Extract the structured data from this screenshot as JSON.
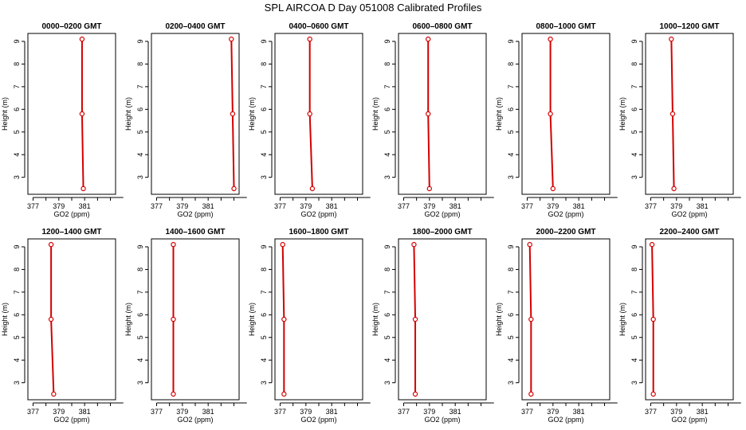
{
  "title": "SPL AIRCOA D  Day 051008  Calibrated Profiles",
  "chart_data": {
    "type": "line",
    "xlabel": "GO2 (ppm)",
    "ylabel": "Height (m)",
    "xlim": [
      376.6,
      383.4
    ],
    "ylim": [
      2.25,
      9.35
    ],
    "xticks": [
      377,
      379,
      381
    ],
    "yticks": [
      3,
      4,
      5,
      6,
      7,
      8,
      9
    ],
    "line_color": "#d40000",
    "grid": false,
    "panels": [
      {
        "title": "0000–0200 GMT",
        "x": [
          380.8,
          380.8,
          380.9
        ],
        "y": [
          9.1,
          5.8,
          2.5
        ]
      },
      {
        "title": "0200–0400 GMT",
        "x": [
          382.8,
          382.9,
          383.0
        ],
        "y": [
          9.1,
          5.8,
          2.5
        ]
      },
      {
        "title": "0400–0600 GMT",
        "x": [
          379.3,
          379.3,
          379.5
        ],
        "y": [
          9.1,
          5.8,
          2.5
        ]
      },
      {
        "title": "0600–0800 GMT",
        "x": [
          378.9,
          378.9,
          379.0
        ],
        "y": [
          9.1,
          5.8,
          2.5
        ]
      },
      {
        "title": "0800–1000 GMT",
        "x": [
          378.8,
          378.8,
          379.0
        ],
        "y": [
          9.1,
          5.8,
          2.5
        ]
      },
      {
        "title": "1000–1200 GMT",
        "x": [
          378.6,
          378.7,
          378.8
        ],
        "y": [
          9.1,
          5.8,
          2.5
        ]
      },
      {
        "title": "1200–1400 GMT",
        "x": [
          378.4,
          378.4,
          378.6
        ],
        "y": [
          9.1,
          5.8,
          2.5
        ]
      },
      {
        "title": "1400–1600 GMT",
        "x": [
          378.3,
          378.3,
          378.3
        ],
        "y": [
          9.1,
          5.8,
          2.5
        ]
      },
      {
        "title": "1600–1800 GMT",
        "x": [
          377.2,
          377.3,
          377.3
        ],
        "y": [
          9.1,
          5.8,
          2.5
        ]
      },
      {
        "title": "1800–2000 GMT",
        "x": [
          377.8,
          377.9,
          377.9
        ],
        "y": [
          9.1,
          5.8,
          2.5
        ]
      },
      {
        "title": "2000–2200 GMT",
        "x": [
          377.2,
          377.3,
          377.3
        ],
        "y": [
          9.1,
          5.8,
          2.5
        ]
      },
      {
        "title": "2200–2400 GMT",
        "x": [
          377.1,
          377.2,
          377.2
        ],
        "y": [
          9.1,
          5.8,
          2.5
        ]
      }
    ]
  }
}
